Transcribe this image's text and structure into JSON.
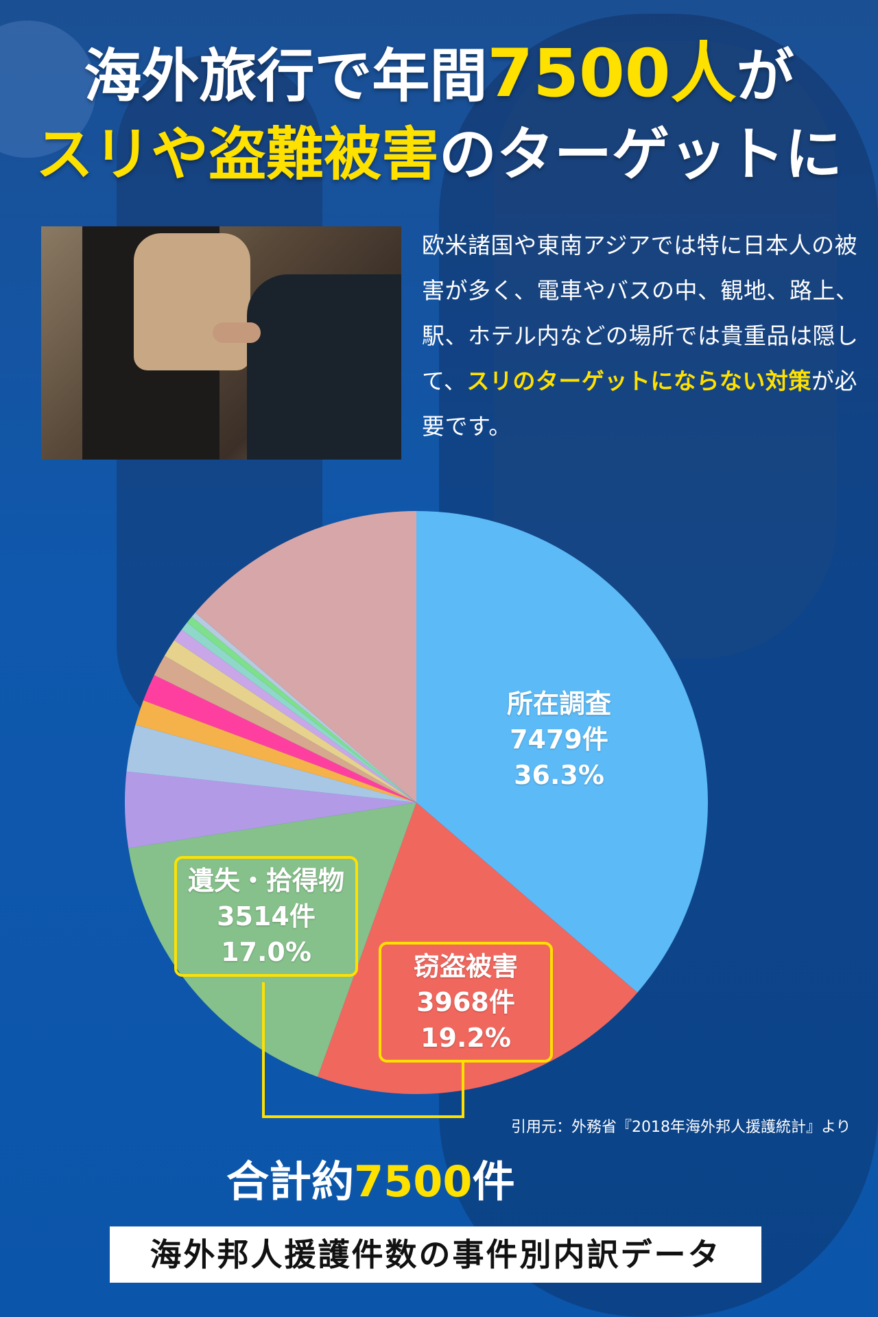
{
  "headline": {
    "line1_a": "海外旅行で年間",
    "line1_b": "7500人",
    "line1_c": "が",
    "line2_a": "スリや",
    "line2_b": "盗難被害",
    "line2_c": "のターゲットに"
  },
  "body": {
    "text_a": "欧米諸国や東南アジアでは特に日本人の被害が多く、電車やバスの中、観地、路上、駅、ホテル内などの場所では貴重品は隠して、",
    "text_highlight": "スリのターゲットにならない対策",
    "text_b": "が必要です。"
  },
  "chart_data": {
    "type": "pie",
    "title": "海外邦人援護件数の事件別内訳データ",
    "slices": [
      {
        "name": "所在調査",
        "count_label": "7479件",
        "percent_label": "36.3%",
        "value": 36.3,
        "color": "#5cbaf6"
      },
      {
        "name": "窃盗被害",
        "count_label": "3968件",
        "percent_label": "19.2%",
        "value": 19.2,
        "color": "#f0675e"
      },
      {
        "name": "遺失・拾得物",
        "count_label": "3514件",
        "percent_label": "17.0%",
        "value": 17.0,
        "color": "#86c08b"
      },
      {
        "name": "",
        "value": 4.2,
        "color": "#b39ae6"
      },
      {
        "name": "",
        "value": 2.6,
        "color": "#a7c7e5"
      },
      {
        "name": "",
        "value": 1.4,
        "color": "#f5b14a"
      },
      {
        "name": "",
        "value": 1.5,
        "color": "#ff3fa0"
      },
      {
        "name": "",
        "value": 1.2,
        "color": "#d6a88d"
      },
      {
        "name": "",
        "value": 1.0,
        "color": "#e6d28c"
      },
      {
        "name": "",
        "value": 0.7,
        "color": "#c9a6e8"
      },
      {
        "name": "",
        "value": 0.5,
        "color": "#8fd7c9"
      },
      {
        "name": "",
        "value": 0.4,
        "color": "#7ee08a"
      },
      {
        "name": "",
        "value": 0.3,
        "color": "#b4cbe0"
      },
      {
        "name": "",
        "value": 13.7,
        "color": "#d7a6a8"
      }
    ]
  },
  "source": "引用元：外務省『2018年海外邦人援護統計』より",
  "total": {
    "prefix": "合計約",
    "number": "7500",
    "suffix": "件"
  },
  "colors": {
    "accent": "#ffe100",
    "background": "#0f58ad"
  }
}
